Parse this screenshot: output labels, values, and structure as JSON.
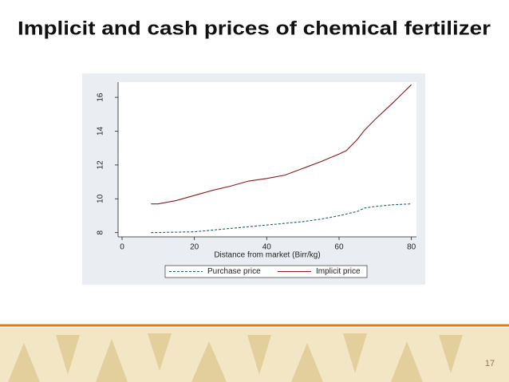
{
  "slide": {
    "title": "Implicit and cash prices of chemical fertilizer",
    "page_number": "17"
  },
  "chart_data": {
    "type": "line",
    "x_label": "Distance from market (Birr/kg)",
    "xlim": [
      -1.1,
      81.4
    ],
    "xticks": [
      0,
      20,
      40,
      60,
      80
    ],
    "ylim": [
      7.75,
      16.9
    ],
    "yticks": [
      8,
      10,
      12,
      14,
      16
    ],
    "series": [
      {
        "name": "Purchase price",
        "color": "#1f5f6b",
        "style": "dashed",
        "x": [
          8,
          20,
          30,
          40,
          50,
          55,
          60,
          65,
          67,
          70,
          75,
          80
        ],
        "values": [
          8.0,
          8.05,
          8.25,
          8.45,
          8.65,
          8.8,
          9.0,
          9.25,
          9.45,
          9.55,
          9.65,
          9.7
        ]
      },
      {
        "name": "Implicit price",
        "color": "#8b1a1a",
        "style": "solid",
        "x": [
          8,
          10,
          15,
          20,
          25,
          30,
          35,
          40,
          45,
          50,
          55,
          60,
          62,
          65,
          67,
          70,
          75,
          80
        ],
        "values": [
          9.7,
          9.7,
          9.9,
          10.2,
          10.5,
          10.75,
          11.05,
          11.2,
          11.4,
          11.8,
          12.2,
          12.65,
          12.85,
          13.5,
          14.05,
          14.7,
          15.7,
          16.75
        ]
      }
    ]
  }
}
